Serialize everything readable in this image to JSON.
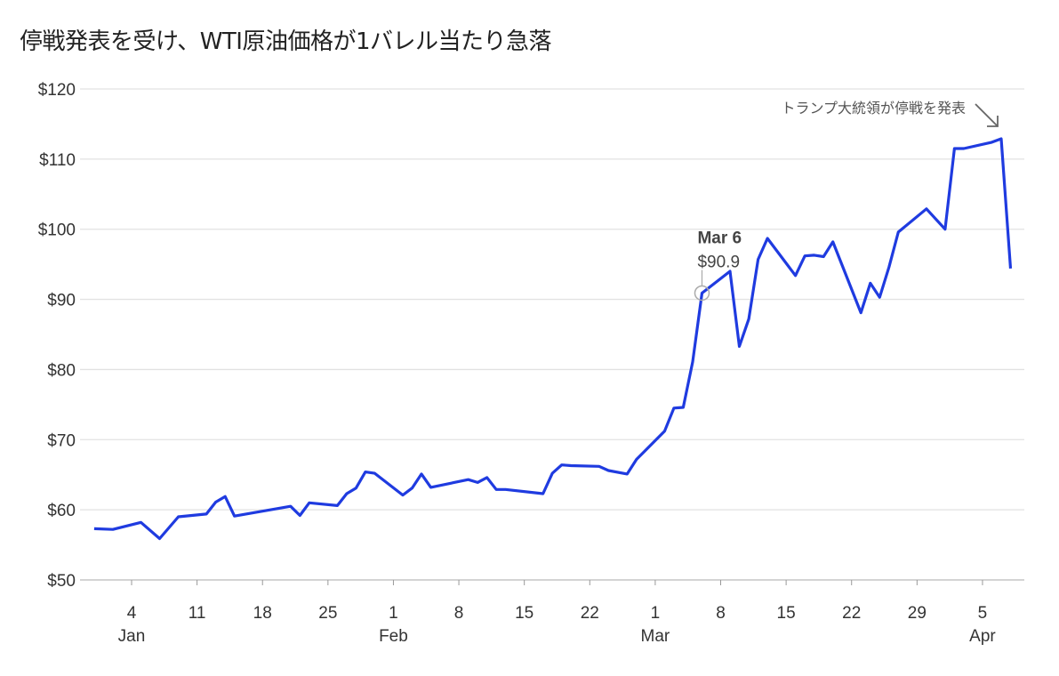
{
  "chart_data": {
    "type": "line",
    "title": "停戦発表を受け、WTI原油価格が1バレル当たり急落",
    "xlabel": "",
    "ylabel": "",
    "x_unit": "day of year (Dec 31 = 0)",
    "ylim": [
      50,
      120
    ],
    "grid": true,
    "y_ticks": [
      50,
      60,
      70,
      80,
      90,
      100,
      110,
      120
    ],
    "y_tick_labels": [
      "$50",
      "$60",
      "$70",
      "$80",
      "$90",
      "$100",
      "$110",
      "$120"
    ],
    "x_ticks": [
      {
        "day": 4,
        "label": "4",
        "month": "Jan"
      },
      {
        "day": 11,
        "label": "11"
      },
      {
        "day": 18,
        "label": "18"
      },
      {
        "day": 25,
        "label": "25"
      },
      {
        "day": 32,
        "label": "1",
        "month": "Feb"
      },
      {
        "day": 39,
        "label": "8"
      },
      {
        "day": 46,
        "label": "15"
      },
      {
        "day": 53,
        "label": "22"
      },
      {
        "day": 60,
        "label": "1",
        "month": "Mar"
      },
      {
        "day": 67,
        "label": "8"
      },
      {
        "day": 74,
        "label": "15"
      },
      {
        "day": 81,
        "label": "22"
      },
      {
        "day": 88,
        "label": "29"
      },
      {
        "day": 95,
        "label": "5",
        "month": "Apr"
      }
    ],
    "series": [
      {
        "name": "WTI",
        "color": "#1f3be0",
        "points": [
          [
            0,
            57.3
          ],
          [
            2,
            57.2
          ],
          [
            5,
            58.2
          ],
          [
            7,
            55.9
          ],
          [
            9,
            59.0
          ],
          [
            12,
            59.4
          ],
          [
            13,
            61.1
          ],
          [
            14,
            61.9
          ],
          [
            15,
            59.1
          ],
          [
            21,
            60.5
          ],
          [
            22,
            59.2
          ],
          [
            23,
            61.0
          ],
          [
            26,
            60.6
          ],
          [
            27,
            62.3
          ],
          [
            28,
            63.1
          ],
          [
            29,
            65.4
          ],
          [
            30,
            65.2
          ],
          [
            33,
            62.1
          ],
          [
            34,
            63.1
          ],
          [
            35,
            65.1
          ],
          [
            36,
            63.2
          ],
          [
            40,
            64.3
          ],
          [
            41,
            63.9
          ],
          [
            42,
            64.6
          ],
          [
            43,
            62.9
          ],
          [
            44,
            62.9
          ],
          [
            48,
            62.3
          ],
          [
            49,
            65.2
          ],
          [
            50,
            66.4
          ],
          [
            51,
            66.3
          ],
          [
            54,
            66.2
          ],
          [
            55,
            65.6
          ],
          [
            57,
            65.1
          ],
          [
            58,
            67.2
          ],
          [
            61,
            71.2
          ],
          [
            62,
            74.5
          ],
          [
            63,
            74.6
          ],
          [
            64,
            81.1
          ],
          [
            65,
            90.9
          ],
          [
            68,
            94.0
          ],
          [
            69,
            83.3
          ],
          [
            70,
            87.2
          ],
          [
            71,
            95.7
          ],
          [
            72,
            98.7
          ],
          [
            75,
            93.4
          ],
          [
            76,
            96.2
          ],
          [
            77,
            96.3
          ],
          [
            78,
            96.1
          ],
          [
            79,
            98.2
          ],
          [
            82,
            88.1
          ],
          [
            83,
            92.3
          ],
          [
            84,
            90.3
          ],
          [
            85,
            94.6
          ],
          [
            86,
            99.6
          ],
          [
            89,
            102.9
          ],
          [
            91,
            100.0
          ],
          [
            92,
            111.5
          ],
          [
            93,
            111.5
          ],
          [
            96,
            112.4
          ],
          [
            97,
            112.9
          ],
          [
            98,
            94.4
          ]
        ]
      }
    ],
    "highlight": {
      "day": 65,
      "date_label": "Mar 6",
      "value_label": "$90.9"
    },
    "annotations": [
      {
        "text": "トランプ大統領が停戦を発表",
        "day": 97
      }
    ]
  }
}
